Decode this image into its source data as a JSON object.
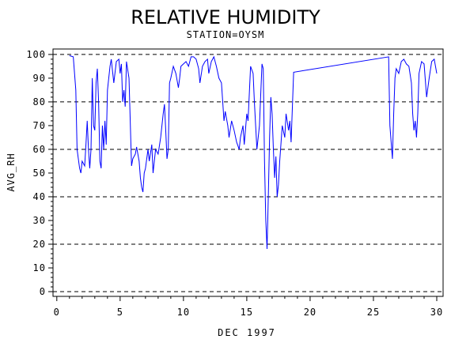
{
  "chart_data": {
    "type": "line",
    "title": "RELATIVE HUMIDITY",
    "subtitle": "STATION=OYSM",
    "x_label": "DEC 1997",
    "y_label": "AVG_RH",
    "xlim": [
      -0.3,
      30.5
    ],
    "ylim": [
      -2,
      102.3
    ],
    "xticks": [
      0,
      5,
      10,
      15,
      20,
      25,
      30
    ],
    "yticks": [
      0,
      10,
      20,
      30,
      40,
      50,
      60,
      70,
      80,
      90,
      100
    ],
    "grid_lines": [
      0,
      20,
      40,
      60,
      80,
      100
    ],
    "color": "#0000ff",
    "x": [
      1.0,
      1.3,
      1.5,
      1.6,
      1.8,
      1.9,
      2.0,
      2.2,
      2.3,
      2.4,
      2.5,
      2.6,
      2.7,
      2.8,
      2.9,
      3.0,
      3.1,
      3.2,
      3.3,
      3.4,
      3.5,
      3.6,
      3.7,
      3.8,
      3.9,
      4.0,
      4.2,
      4.3,
      4.5,
      4.7,
      4.9,
      5.0,
      5.1,
      5.2,
      5.3,
      5.4,
      5.5,
      5.7,
      5.9,
      6.0,
      6.2,
      6.3,
      6.5,
      6.6,
      6.7,
      6.8,
      6.9,
      7.0,
      7.2,
      7.3,
      7.5,
      7.6,
      7.8,
      8.0,
      8.2,
      8.4,
      8.5,
      8.6,
      8.7,
      8.8,
      8.9,
      9.0,
      9.2,
      9.4,
      9.6,
      9.7,
      9.8,
      10.0,
      10.2,
      10.4,
      10.6,
      10.8,
      11.0,
      11.2,
      11.3,
      11.5,
      11.7,
      11.9,
      12.0,
      12.2,
      12.4,
      12.6,
      12.8,
      13.0,
      13.2,
      13.3,
      13.5,
      13.6,
      13.8,
      14.0,
      14.2,
      14.4,
      14.5,
      14.7,
      14.8,
      15.0,
      15.1,
      15.3,
      15.5,
      15.6,
      15.7,
      15.8,
      16.0,
      16.2,
      16.3,
      16.4,
      16.5,
      16.6,
      16.7,
      16.8,
      16.9,
      17.0,
      17.1,
      17.2,
      17.3,
      17.4,
      17.5,
      17.6,
      17.8,
      18.0,
      18.1,
      18.3,
      18.4,
      18.5,
      18.7,
      26.2,
      26.3,
      26.5,
      26.6,
      26.7,
      26.8,
      27.0,
      27.2,
      27.4,
      27.6,
      27.8,
      28.0,
      28.1,
      28.2,
      28.3,
      28.4,
      28.5,
      28.6,
      28.8,
      29.0,
      29.2,
      29.4,
      29.6,
      29.8,
      30.0
    ],
    "values": [
      99.5,
      99,
      85,
      60,
      52,
      50,
      55,
      53,
      62,
      72,
      60,
      52,
      60,
      90,
      70,
      68,
      88,
      94,
      80,
      55,
      52,
      70,
      60,
      72,
      62,
      85,
      95,
      98,
      88,
      97,
      98,
      92,
      96,
      80,
      85,
      78,
      97,
      90,
      53,
      56,
      58,
      61,
      55,
      48,
      44,
      42,
      50,
      52,
      60,
      55,
      62,
      50,
      60,
      58,
      65,
      75,
      79,
      68,
      56,
      60,
      88,
      90,
      95,
      92,
      86,
      90,
      95,
      96,
      97,
      95,
      99,
      99,
      98,
      94,
      88,
      95,
      97,
      98,
      92,
      97,
      99,
      95,
      90,
      88,
      72,
      76,
      70,
      65,
      72,
      68,
      63,
      60,
      65,
      70,
      62,
      75,
      72,
      95,
      92,
      80,
      70,
      60,
      70,
      96,
      94,
      55,
      30,
      18,
      40,
      65,
      82,
      75,
      60,
      48,
      57,
      40,
      45,
      55,
      70,
      65,
      75,
      68,
      72,
      63,
      92.5,
      99,
      70,
      56,
      75,
      90,
      94,
      92,
      97,
      98,
      96,
      95,
      88,
      75,
      68,
      72,
      65,
      75,
      92,
      97,
      96,
      82,
      90,
      97,
      98,
      92
    ]
  }
}
